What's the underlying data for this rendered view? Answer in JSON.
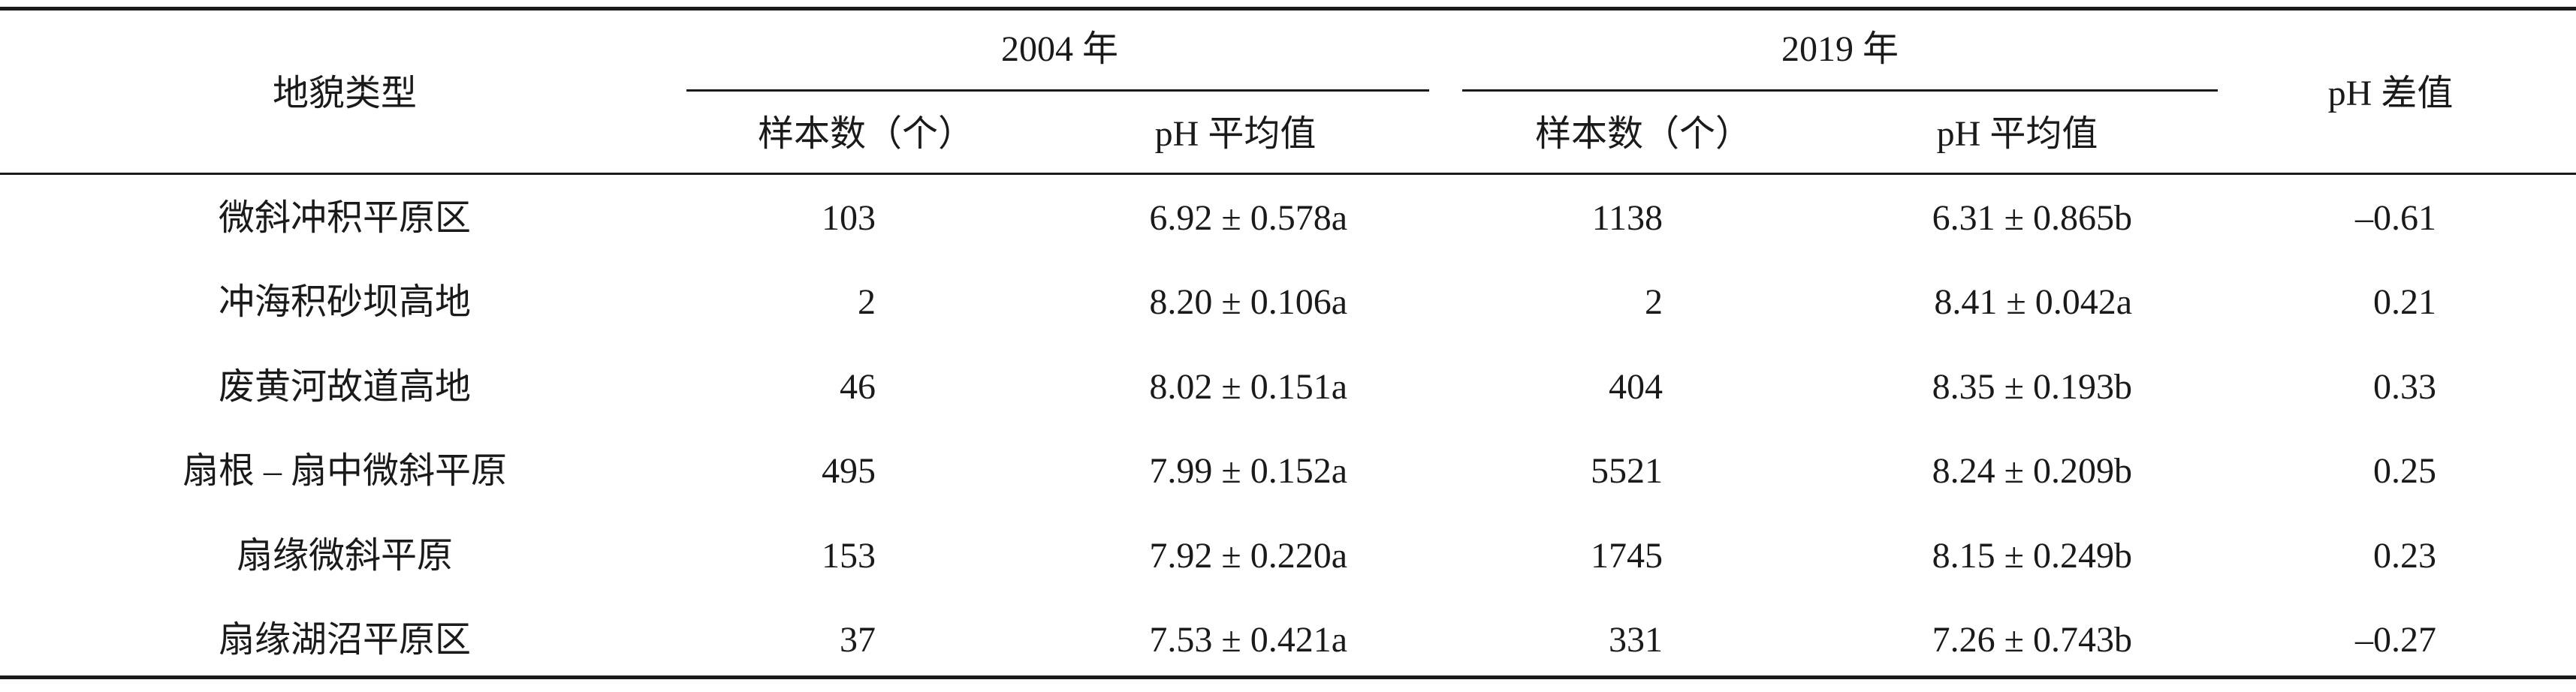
{
  "table": {
    "header": {
      "landform": "地貌类型",
      "year_groups": [
        "2004 年",
        "2019 年"
      ],
      "ph_diff": "pH 差值",
      "subheaders": [
        "样本数（个）",
        "pH 平均值",
        "样本数（个）",
        "pH 平均值"
      ]
    },
    "rows": [
      [
        "微斜冲积平原区",
        "103",
        "6.92 ± 0.578a",
        "1138",
        "6.31 ± 0.865b",
        "–0.61"
      ],
      [
        "冲海积砂坝高地",
        "2",
        "8.20 ± 0.106a",
        "2",
        "8.41 ± 0.042a",
        "0.21"
      ],
      [
        "废黄河故道高地",
        "46",
        "8.02 ± 0.151a",
        "404",
        "8.35 ± 0.193b",
        "0.33"
      ],
      [
        "扇根 – 扇中微斜平原",
        "495",
        "7.99 ± 0.152a",
        "5521",
        "8.24 ± 0.209b",
        "0.25"
      ],
      [
        "扇缘微斜平原",
        "153",
        "7.92 ± 0.220a",
        "1745",
        "8.15 ± 0.249b",
        "0.23"
      ],
      [
        "扇缘湖沼平原区",
        "37",
        "7.53 ± 0.421a",
        "331",
        "7.26 ± 0.743b",
        "–0.27"
      ]
    ]
  }
}
